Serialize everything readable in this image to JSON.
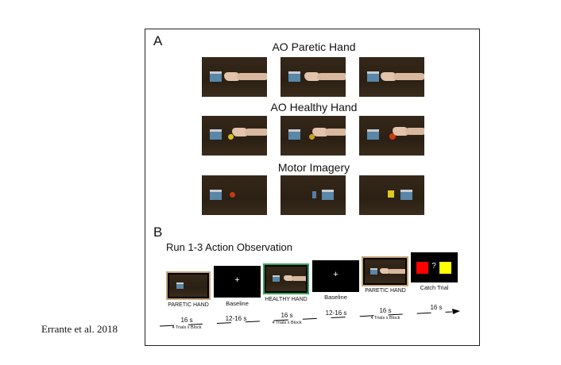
{
  "panel_a": {
    "letter": "A",
    "rows": [
      {
        "title": "AO Paretic Hand"
      },
      {
        "title": "AO Healthy Hand"
      },
      {
        "title": "Motor Imagery"
      }
    ]
  },
  "panel_b": {
    "letter": "B",
    "title": "Run 1-3 Action Observation",
    "stimuli": [
      {
        "label": "PARETIC HAND",
        "frame_color": "#c9a77a"
      },
      {
        "label": "Baseline",
        "symbol": "+"
      },
      {
        "label": "HEALTHY HAND",
        "frame_color": "#3aa35a"
      },
      {
        "label": "Baseline",
        "symbol": "+"
      },
      {
        "label": "PARETIC HAND",
        "frame_color": "#c9a77a"
      },
      {
        "label": "Catch Trial",
        "symbol": "?",
        "colors": [
          "#ff0000",
          "#ffff00"
        ]
      }
    ],
    "timeline": [
      {
        "duration": "16 s",
        "sub": "4 Trials x Block"
      },
      {
        "duration": "12-16 s"
      },
      {
        "duration": "16 s",
        "sub": "4 Trials x Block"
      },
      {
        "duration": "12-16 s"
      },
      {
        "duration": "16 s",
        "sub": "4 Trials x Block"
      },
      {
        "duration": "16 s"
      }
    ]
  },
  "credit": "Errante et al. 2018"
}
